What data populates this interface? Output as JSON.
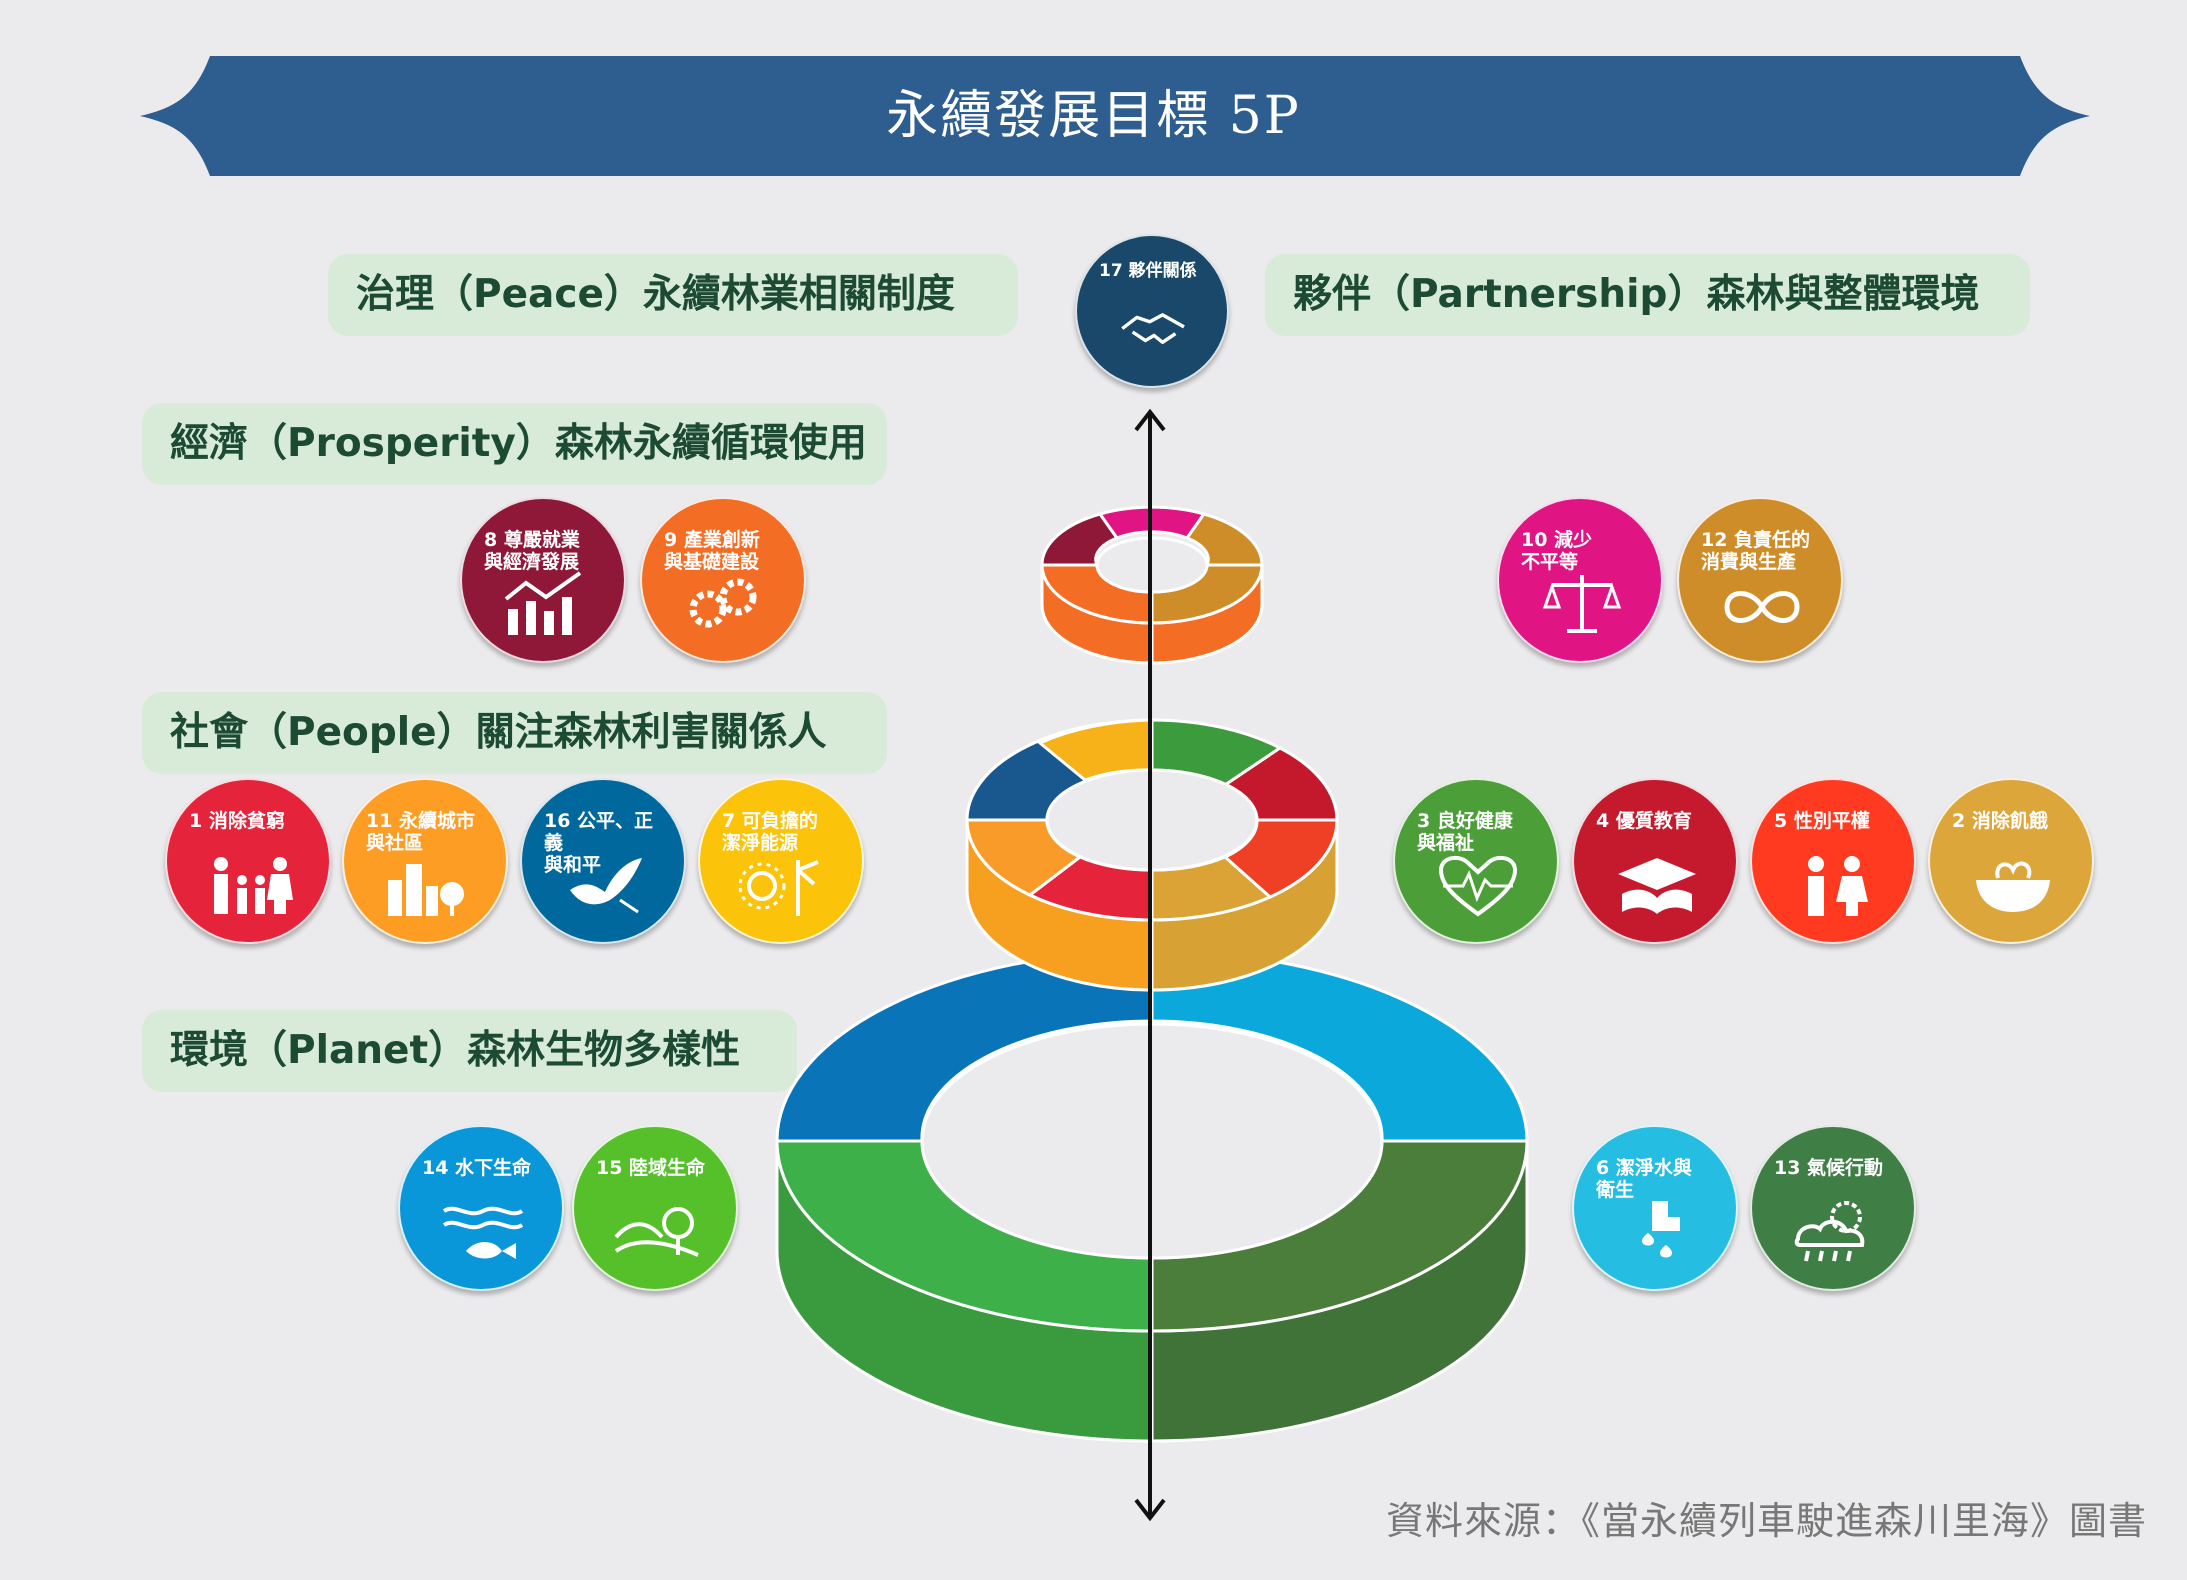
{
  "title": "永續發展目標 5P",
  "categories": {
    "peace": "治理（Peace）永續林業相關制度",
    "partnership": "夥伴（Partnership）森林與整體環境",
    "prosperity": "經濟（Prosperity）森林永續循環使用",
    "people": "社會（People）關注森林利害關係人",
    "planet": "環境（Planet）森林生物多樣性"
  },
  "goals": {
    "g17": {
      "label": "17 夥伴關係",
      "color": "#19486a",
      "icon": "handshake-icon"
    },
    "g8": {
      "label": "8 尊嚴就業\n與經濟發展",
      "color": "#8f1838",
      "icon": "growth-chart-icon"
    },
    "g9": {
      "label": "9 產業創新\n與基礎建設",
      "color": "#f36d25",
      "icon": "gears-icon"
    },
    "g10": {
      "label": "10 減少\n不平等",
      "color": "#e11484",
      "icon": "scale-icon"
    },
    "g12": {
      "label": "12 負責任的\n消費與生產",
      "color": "#cf8d2a",
      "icon": "infinity-icon"
    },
    "g1": {
      "label": "1 消除貧窮",
      "color": "#e5243b",
      "icon": "family-icon"
    },
    "g11": {
      "label": "11 永續城市\n與社區",
      "color": "#fd9d24",
      "icon": "city-icon"
    },
    "g16": {
      "label": "16 公平、正義\n與和平",
      "color": "#00689d",
      "icon": "dove-icon"
    },
    "g7": {
      "label": "7 可負擔的\n潔淨能源",
      "color": "#fcc30b",
      "icon": "sun-icon"
    },
    "g3": {
      "label": "3 良好健康\n與福祉",
      "color": "#4c9f38",
      "icon": "heartbeat-icon"
    },
    "g4": {
      "label": "4 優質教育",
      "color": "#c5192d",
      "icon": "book-icon"
    },
    "g5": {
      "label": "5 性別平權",
      "color": "#ff3a21",
      "icon": "gender-icon"
    },
    "g2": {
      "label": "2 消除飢餓",
      "color": "#dda63a",
      "icon": "bowl-icon"
    },
    "g14": {
      "label": "14 水下生命",
      "color": "#0a97d9",
      "icon": "fish-icon"
    },
    "g15": {
      "label": "15 陸域生命",
      "color": "#56c02b",
      "icon": "tree-icon"
    },
    "g6": {
      "label": "6 潔淨水與\n衛生",
      "color": "#26bde2",
      "icon": "water-tap-icon"
    },
    "g13": {
      "label": "13 氣候行動",
      "color": "#3f7e44",
      "icon": "climate-icon"
    }
  },
  "source": "資料來源：《當永續列車駛進森川里海》圖書"
}
